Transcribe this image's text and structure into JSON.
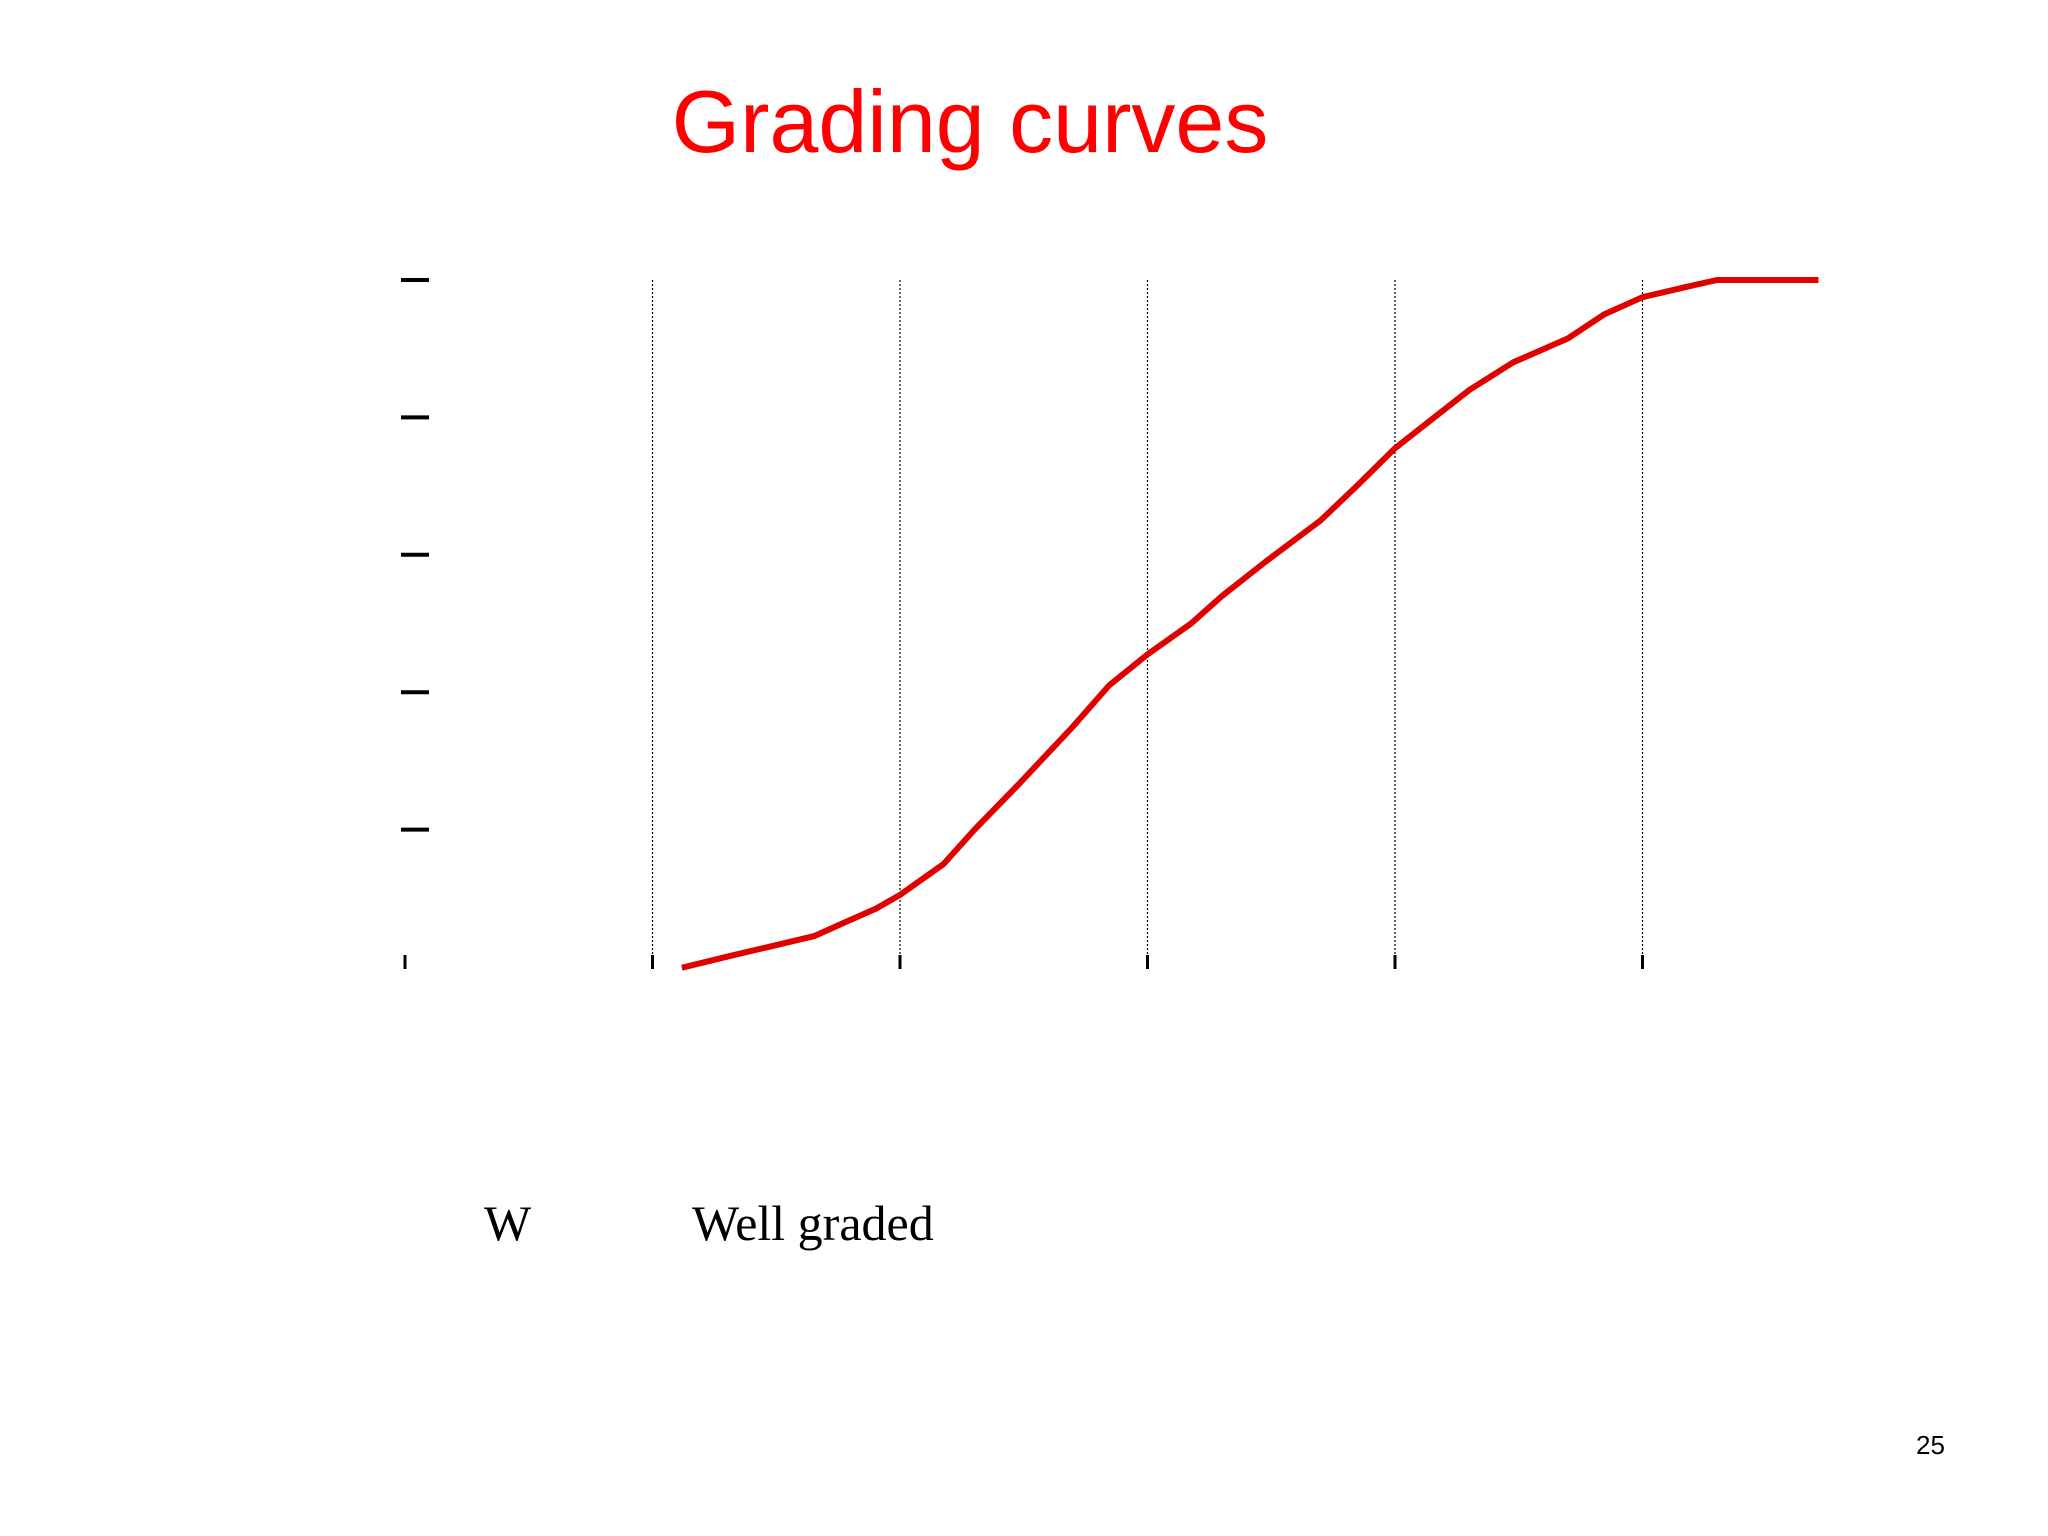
{
  "slide": {
    "title": "Grading curves",
    "page_number": "25"
  },
  "legend": {
    "symbol": "W",
    "label": "Well graded"
  },
  "colors": {
    "title": "#ff0000",
    "curve": "#e00000",
    "axis": "#000000",
    "grid": "#000000"
  },
  "chart_data": {
    "type": "line",
    "title": "",
    "xlabel": "",
    "ylabel": "",
    "x_scale": "log",
    "xlim": [
      0.0001,
      100
    ],
    "ylim": [
      0,
      100
    ],
    "grid": "vertical dotted lines at each decade",
    "tick_labels_visible": false,
    "series": [
      {
        "x": [
          0.00135,
          0.002,
          0.003,
          0.0045,
          0.006,
          0.008,
          0.01,
          0.015,
          0.02,
          0.03,
          0.05,
          0.07,
          0.1,
          0.15,
          0.2,
          0.3,
          0.5,
          0.7,
          1,
          1.5,
          2,
          3,
          5,
          7,
          10,
          15,
          20,
          30,
          50
        ],
        "y": [
          0,
          1.5,
          3,
          4.5,
          6.5,
          8.5,
          10.5,
          15,
          20,
          26.5,
          35,
          41,
          45.5,
          50,
          54,
          59,
          65,
          70,
          75.5,
          80.5,
          84,
          88,
          91.5,
          95,
          97.5,
          99,
          100,
          100,
          100
        ]
      }
    ]
  }
}
